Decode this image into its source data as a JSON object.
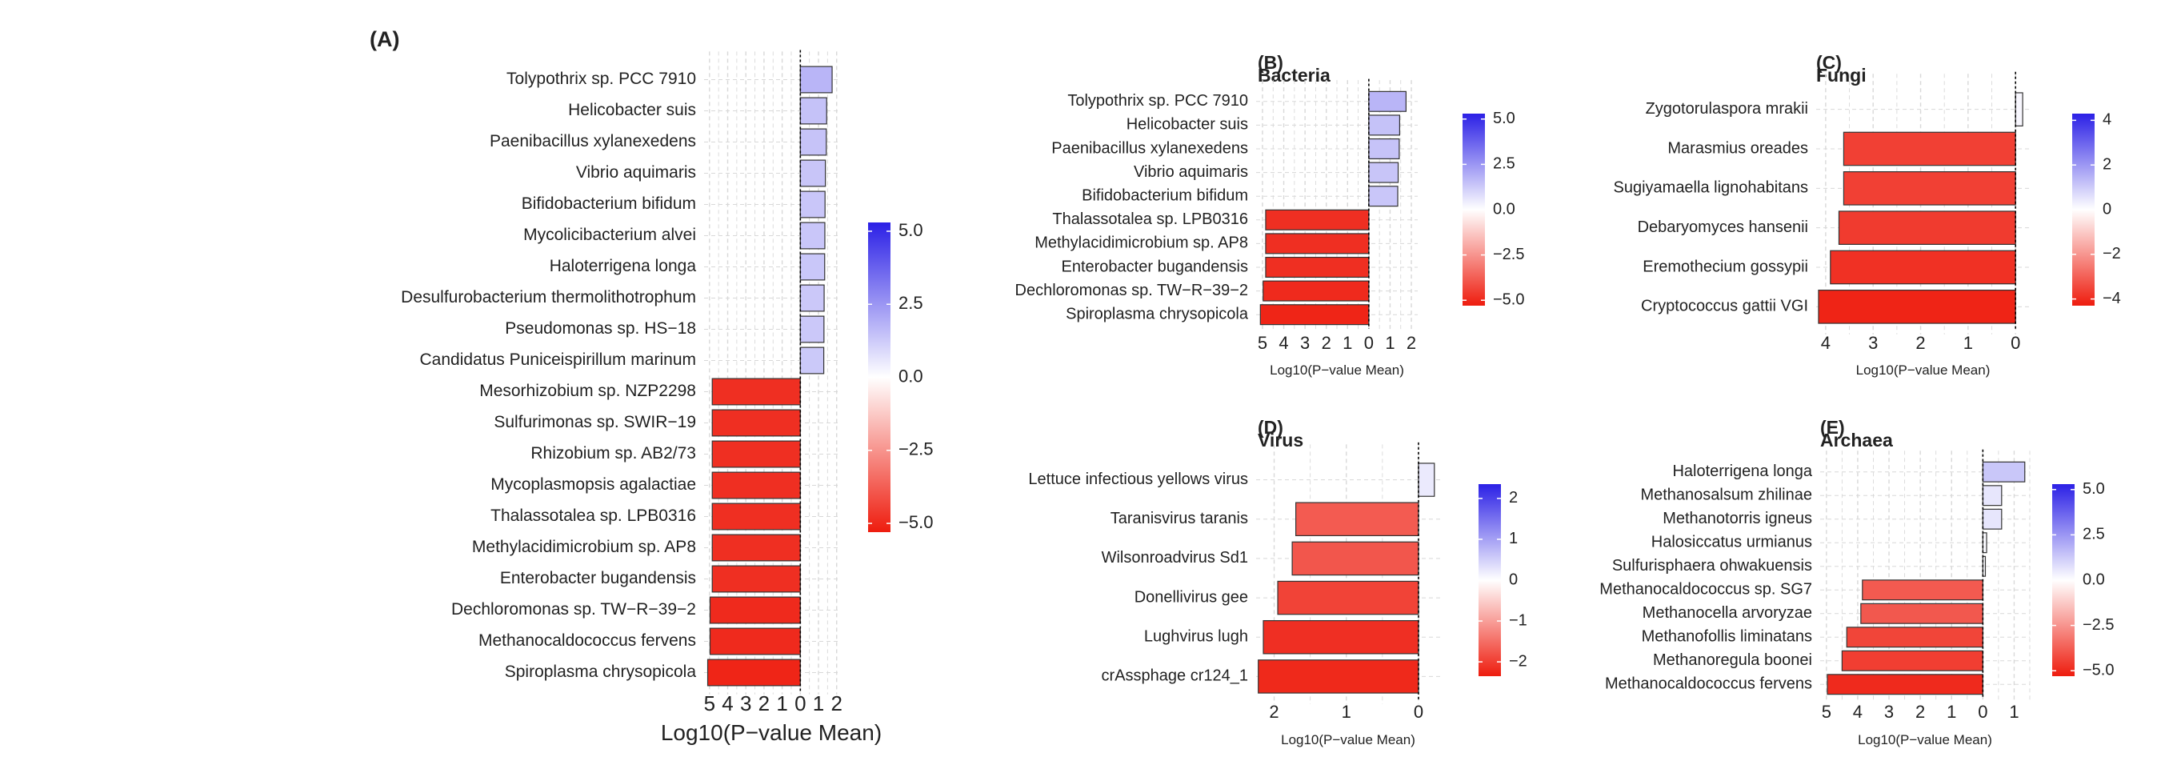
{
  "colors": {
    "positive_max": "#2b20e6",
    "neutral": "#ffffff",
    "negative_max": "#ee1c0e",
    "grid": "#d8d8d8",
    "bar_stroke": "#333333"
  },
  "chart_data": [
    {
      "id": "A",
      "type": "bar",
      "orientation": "horizontal",
      "panel_label": "(A)",
      "title": "",
      "xlabel": "Log10(P−value Mean)",
      "axis_direction": "negative-values-plotted-left-labeled-as-positive",
      "xticks": [
        "5",
        "4",
        "3",
        "2",
        "1",
        "0",
        "1",
        "2"
      ],
      "xlim": [
        -5.3,
        2.1
      ],
      "categories": [
        "Tolypothrix sp. PCC 7910",
        "Helicobacter suis",
        "Paenibacillus xylanexedens",
        "Vibrio aquimaris",
        "Bifidobacterium bifidum",
        "Mycolicibacterium alvei",
        "Haloterrigena longa",
        "Desulfurobacterium thermolithotrophum",
        "Pseudomonas sp. HS−18",
        "Candidatus Puniceispirillum marinum",
        "Mesorhizobium sp. NZP2298",
        "Sulfurimonas sp. SWIR−19",
        "Rhizobium sp. AB2/73",
        "Mycoplasmopsis agalactiae",
        "Thalassotalea sp. LPB0316",
        "Methylacidimicrobium sp. AP8",
        "Enterobacter bugandensis",
        "Dechloromonas sp. TW−R−39−2",
        "Methanocaldococcus fervens",
        "Spiroplasma chrysopicola"
      ],
      "values": [
        1.75,
        1.45,
        1.43,
        1.38,
        1.36,
        1.35,
        1.34,
        1.31,
        1.3,
        1.29,
        -4.85,
        -4.85,
        -4.85,
        -4.85,
        -4.85,
        -4.85,
        -4.85,
        -4.97,
        -4.97,
        -5.1
      ],
      "legend": {
        "ticks": [
          "5.0",
          "2.5",
          "0.0",
          "−2.5",
          "−5.0"
        ],
        "tick_values": [
          5,
          2.5,
          0,
          -2.5,
          -5
        ],
        "range": [
          -5.3,
          5.3
        ]
      }
    },
    {
      "id": "B",
      "type": "bar",
      "orientation": "horizontal",
      "panel_label": "(B)",
      "title": "Bacteria",
      "xlabel": "Log10(P−value Mean)",
      "xticks": [
        "5",
        "4",
        "3",
        "2",
        "1",
        "0",
        "1",
        "2"
      ],
      "xlim": [
        -5.3,
        2.3
      ],
      "categories": [
        "Tolypothrix sp. PCC 7910",
        "Helicobacter suis",
        "Paenibacillus xylanexedens",
        "Vibrio aquimaris",
        "Bifidobacterium bifidum",
        "Thalassotalea sp. LPB0316",
        "Methylacidimicrobium sp. AP8",
        "Enterobacter bugandensis",
        "Dechloromonas sp. TW−R−39−2",
        "Spiroplasma chrysopicola"
      ],
      "values": [
        1.75,
        1.45,
        1.43,
        1.38,
        1.36,
        -4.85,
        -4.85,
        -4.85,
        -4.97,
        -5.1
      ],
      "legend": {
        "ticks": [
          "5.0",
          "2.5",
          "0.0",
          "−2.5",
          "−5.0"
        ],
        "tick_values": [
          5,
          2.5,
          0,
          -2.5,
          -5
        ],
        "range": [
          -5.3,
          5.3
        ]
      }
    },
    {
      "id": "C",
      "type": "bar",
      "orientation": "horizontal",
      "panel_label": "(C)",
      "title": "Fungi",
      "xlabel": "Log10(P−value Mean)",
      "xticks": [
        "4",
        "3",
        "2",
        "1",
        "0"
      ],
      "xlim": [
        -4.2,
        0.3
      ],
      "categories": [
        "Zygotorulaspora mrakii",
        "Marasmius oreades",
        "Sugiyamaella lignohabitans",
        "Debaryomyces hansenii",
        "Eremothecium gossypii",
        "Cryptococcus gattii VGI"
      ],
      "values": [
        0.15,
        -3.62,
        -3.62,
        -3.72,
        -3.9,
        -4.15
      ],
      "legend": {
        "ticks": [
          "4",
          "2",
          "0",
          "−2",
          "−4"
        ],
        "tick_values": [
          4,
          2,
          0,
          -2,
          -4
        ],
        "range": [
          -4.3,
          4.3
        ]
      }
    },
    {
      "id": "D",
      "type": "bar",
      "orientation": "horizontal",
      "panel_label": "(D)",
      "title": "Virus",
      "xlabel": "Log10(P−value Mean)",
      "xticks": [
        "2",
        "1",
        "0"
      ],
      "xlim": [
        -2.25,
        0.3
      ],
      "categories": [
        "Lettuce infectious yellows virus",
        "Taranisvirus taranis",
        "Wilsonroadvirus Sd1",
        "Donellivirus gee",
        "Lughvirus lugh",
        "crAssphage cr124_1"
      ],
      "values": [
        0.22,
        -1.7,
        -1.75,
        -1.95,
        -2.15,
        -2.22
      ],
      "legend": {
        "ticks": [
          "2",
          "1",
          "0",
          "−1",
          "−2"
        ],
        "tick_values": [
          2,
          1,
          0,
          -1,
          -2
        ],
        "range": [
          -2.35,
          2.35
        ]
      }
    },
    {
      "id": "E",
      "type": "bar",
      "orientation": "horizontal",
      "panel_label": "(E)",
      "title": "Archaea",
      "xlabel": "Log10(P−value Mean)",
      "xticks": [
        "5",
        "4",
        "3",
        "2",
        "1",
        "0",
        "1"
      ],
      "xlim": [
        -5.2,
        1.5
      ],
      "categories": [
        "Haloterrigena longa",
        "Methanosalsum zhilinae",
        "Methanotorris igneus",
        "Halosiccatus urmianus",
        "Sulfurisphaera ohwakuensis",
        "Methanocaldococcus sp. SG7",
        "Methanocella arvoryzae",
        "Methanofollis liminatans",
        "Methanoregula boonei",
        "Methanocaldococcus fervens"
      ],
      "values": [
        1.34,
        0.6,
        0.6,
        0.12,
        0.08,
        -3.85,
        -3.9,
        -4.35,
        -4.5,
        -4.97
      ],
      "legend": {
        "ticks": [
          "5.0",
          "2.5",
          "0.0",
          "−2.5",
          "−5.0"
        ],
        "tick_values": [
          5,
          2.5,
          0,
          -2.5,
          -5
        ],
        "range": [
          -5.3,
          5.3
        ]
      }
    }
  ]
}
